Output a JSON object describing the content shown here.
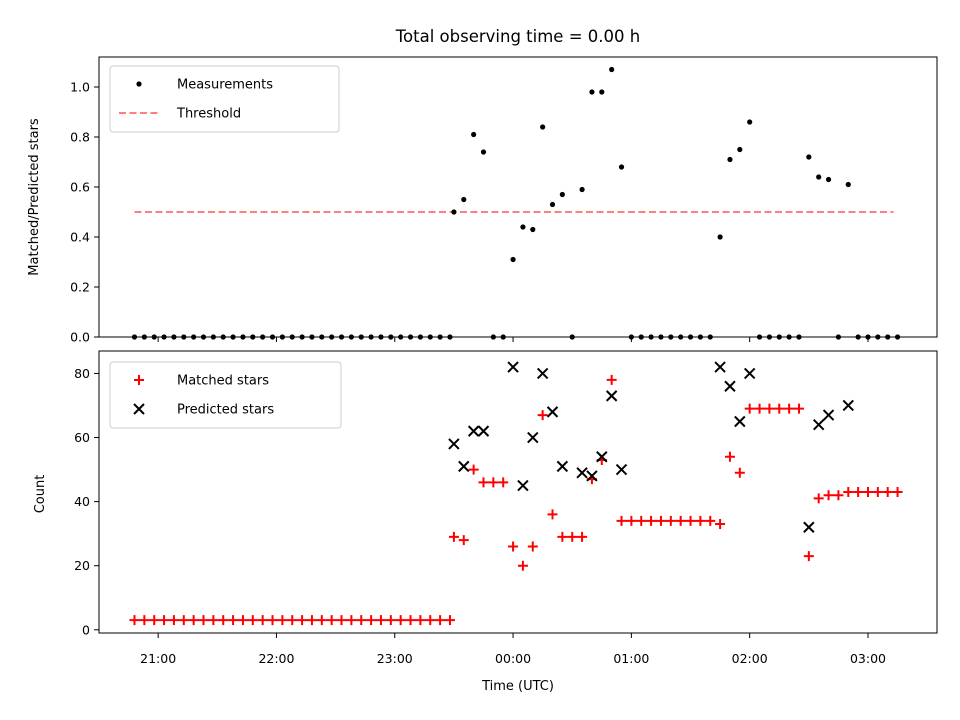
{
  "chart_data": [
    {
      "type": "scatter",
      "title": "Total observing time = 0.00 h",
      "xlabel": "",
      "ylabel": "Matched/Predicted stars",
      "ylim": [
        0,
        1.12
      ],
      "yticks": [
        0.0,
        0.2,
        0.4,
        0.6,
        0.8,
        1.0
      ],
      "ytick_labels": [
        "0.0",
        "0.2",
        "0.4",
        "0.6",
        "0.8",
        "1.0"
      ],
      "xlim": [
        "20:30",
        "03:35"
      ],
      "legend_position": "upper-left",
      "series": [
        {
          "name": "Measurements",
          "color": "#000000",
          "marker": "dot",
          "points": [
            [
              "20:48",
              0
            ],
            [
              "20:53",
              0
            ],
            [
              "20:58",
              0
            ],
            [
              "21:03",
              0
            ],
            [
              "21:08",
              0
            ],
            [
              "21:13",
              0
            ],
            [
              "21:18",
              0
            ],
            [
              "21:23",
              0
            ],
            [
              "21:28",
              0
            ],
            [
              "21:33",
              0
            ],
            [
              "21:38",
              0
            ],
            [
              "21:43",
              0
            ],
            [
              "21:48",
              0
            ],
            [
              "21:53",
              0
            ],
            [
              "21:58",
              0
            ],
            [
              "22:03",
              0
            ],
            [
              "22:08",
              0
            ],
            [
              "22:13",
              0
            ],
            [
              "22:18",
              0
            ],
            [
              "22:23",
              0
            ],
            [
              "22:28",
              0
            ],
            [
              "22:33",
              0
            ],
            [
              "22:38",
              0
            ],
            [
              "22:43",
              0
            ],
            [
              "22:48",
              0
            ],
            [
              "22:53",
              0
            ],
            [
              "22:58",
              0
            ],
            [
              "23:03",
              0
            ],
            [
              "23:08",
              0
            ],
            [
              "23:13",
              0
            ],
            [
              "23:18",
              0
            ],
            [
              "23:23",
              0
            ],
            [
              "23:28",
              0
            ],
            [
              "23:30",
              0.5
            ],
            [
              "23:35",
              0.55
            ],
            [
              "23:40",
              0.81
            ],
            [
              "23:45",
              0.74
            ],
            [
              "23:50",
              0
            ],
            [
              "23:55",
              0
            ],
            [
              "00:00",
              0.31
            ],
            [
              "00:05",
              0.44
            ],
            [
              "00:10",
              0.43
            ],
            [
              "00:15",
              0.84
            ],
            [
              "00:20",
              0.53
            ],
            [
              "00:25",
              0.57
            ],
            [
              "00:30",
              0
            ],
            [
              "00:35",
              0.59
            ],
            [
              "00:40",
              0.98
            ],
            [
              "00:45",
              0.98
            ],
            [
              "00:50",
              1.07
            ],
            [
              "00:55",
              0.68
            ],
            [
              "01:00",
              0
            ],
            [
              "01:05",
              0
            ],
            [
              "01:10",
              0
            ],
            [
              "01:15",
              0
            ],
            [
              "01:20",
              0
            ],
            [
              "01:25",
              0
            ],
            [
              "01:30",
              0
            ],
            [
              "01:35",
              0
            ],
            [
              "01:40",
              0
            ],
            [
              "01:45",
              0.4
            ],
            [
              "01:50",
              0.71
            ],
            [
              "01:55",
              0.75
            ],
            [
              "02:00",
              0.86
            ],
            [
              "02:05",
              0
            ],
            [
              "02:10",
              0
            ],
            [
              "02:15",
              0
            ],
            [
              "02:20",
              0
            ],
            [
              "02:25",
              0
            ],
            [
              "02:30",
              0.72
            ],
            [
              "02:35",
              0.64
            ],
            [
              "02:40",
              0.63
            ],
            [
              "02:45",
              0
            ],
            [
              "02:50",
              0.61
            ],
            [
              "02:55",
              0
            ],
            [
              "03:00",
              0
            ],
            [
              "03:05",
              0
            ],
            [
              "03:10",
              0
            ],
            [
              "03:15",
              0
            ]
          ]
        },
        {
          "name": "Threshold",
          "color": "#ff7f7f",
          "style": "dashed",
          "points": [
            [
              "20:48",
              0.5
            ],
            [
              "03:13",
              0.5
            ]
          ]
        }
      ]
    },
    {
      "type": "scatter",
      "title": "",
      "xlabel": "Time (UTC)",
      "ylabel": "Count",
      "ylim": [
        -1,
        87
      ],
      "yticks": [
        0,
        20,
        40,
        60,
        80
      ],
      "ytick_labels": [
        "0",
        "20",
        "40",
        "60",
        "80"
      ],
      "xlim": [
        "20:30",
        "03:35"
      ],
      "xticks": [
        "21:00",
        "22:00",
        "23:00",
        "00:00",
        "01:00",
        "02:00",
        "03:00"
      ],
      "xtick_labels": [
        "21:00",
        "22:00",
        "23:00",
        "00:00",
        "01:00",
        "02:00",
        "03:00"
      ],
      "legend_position": "upper-left",
      "series": [
        {
          "name": "Matched stars",
          "color": "#ff0000",
          "marker": "plus",
          "points": [
            [
              "20:48",
              3
            ],
            [
              "20:53",
              3
            ],
            [
              "20:58",
              3
            ],
            [
              "21:03",
              3
            ],
            [
              "21:08",
              3
            ],
            [
              "21:13",
              3
            ],
            [
              "21:18",
              3
            ],
            [
              "21:23",
              3
            ],
            [
              "21:28",
              3
            ],
            [
              "21:33",
              3
            ],
            [
              "21:38",
              3
            ],
            [
              "21:43",
              3
            ],
            [
              "21:48",
              3
            ],
            [
              "21:53",
              3
            ],
            [
              "21:58",
              3
            ],
            [
              "22:03",
              3
            ],
            [
              "22:08",
              3
            ],
            [
              "22:13",
              3
            ],
            [
              "22:18",
              3
            ],
            [
              "22:23",
              3
            ],
            [
              "22:28",
              3
            ],
            [
              "22:33",
              3
            ],
            [
              "22:38",
              3
            ],
            [
              "22:43",
              3
            ],
            [
              "22:48",
              3
            ],
            [
              "22:53",
              3
            ],
            [
              "22:58",
              3
            ],
            [
              "23:03",
              3
            ],
            [
              "23:08",
              3
            ],
            [
              "23:13",
              3
            ],
            [
              "23:18",
              3
            ],
            [
              "23:23",
              3
            ],
            [
              "23:28",
              3
            ],
            [
              "23:30",
              29
            ],
            [
              "23:35",
              28
            ],
            [
              "23:40",
              50
            ],
            [
              "23:45",
              46
            ],
            [
              "23:50",
              46
            ],
            [
              "23:55",
              46
            ],
            [
              "00:00",
              26
            ],
            [
              "00:05",
              20
            ],
            [
              "00:10",
              26
            ],
            [
              "00:15",
              67
            ],
            [
              "00:20",
              36
            ],
            [
              "00:25",
              29
            ],
            [
              "00:30",
              29
            ],
            [
              "00:35",
              29
            ],
            [
              "00:40",
              47
            ],
            [
              "00:45",
              53
            ],
            [
              "00:50",
              78
            ],
            [
              "00:55",
              34
            ],
            [
              "01:00",
              34
            ],
            [
              "01:05",
              34
            ],
            [
              "01:10",
              34
            ],
            [
              "01:15",
              34
            ],
            [
              "01:20",
              34
            ],
            [
              "01:25",
              34
            ],
            [
              "01:30",
              34
            ],
            [
              "01:35",
              34
            ],
            [
              "01:40",
              34
            ],
            [
              "01:45",
              33
            ],
            [
              "01:50",
              54
            ],
            [
              "01:55",
              49
            ],
            [
              "02:00",
              69
            ],
            [
              "02:05",
              69
            ],
            [
              "02:10",
              69
            ],
            [
              "02:15",
              69
            ],
            [
              "02:20",
              69
            ],
            [
              "02:25",
              69
            ],
            [
              "02:30",
              23
            ],
            [
              "02:35",
              41
            ],
            [
              "02:40",
              42
            ],
            [
              "02:45",
              42
            ],
            [
              "02:50",
              43
            ],
            [
              "02:55",
              43
            ],
            [
              "03:00",
              43
            ],
            [
              "03:05",
              43
            ],
            [
              "03:10",
              43
            ],
            [
              "03:15",
              43
            ]
          ]
        },
        {
          "name": "Predicted stars",
          "color": "#000000",
          "marker": "x",
          "points": [
            [
              "23:30",
              58
            ],
            [
              "23:35",
              51
            ],
            [
              "23:40",
              62
            ],
            [
              "23:45",
              62
            ],
            [
              "00:00",
              82
            ],
            [
              "00:05",
              45
            ],
            [
              "00:10",
              60
            ],
            [
              "00:15",
              80
            ],
            [
              "00:20",
              68
            ],
            [
              "00:25",
              51
            ],
            [
              "00:35",
              49
            ],
            [
              "00:40",
              48
            ],
            [
              "00:45",
              54
            ],
            [
              "00:50",
              73
            ],
            [
              "00:55",
              50
            ],
            [
              "01:45",
              82
            ],
            [
              "01:50",
              76
            ],
            [
              "01:55",
              65
            ],
            [
              "02:00",
              80
            ],
            [
              "02:30",
              32
            ],
            [
              "02:35",
              64
            ],
            [
              "02:40",
              67
            ],
            [
              "02:50",
              70
            ]
          ]
        }
      ]
    }
  ]
}
